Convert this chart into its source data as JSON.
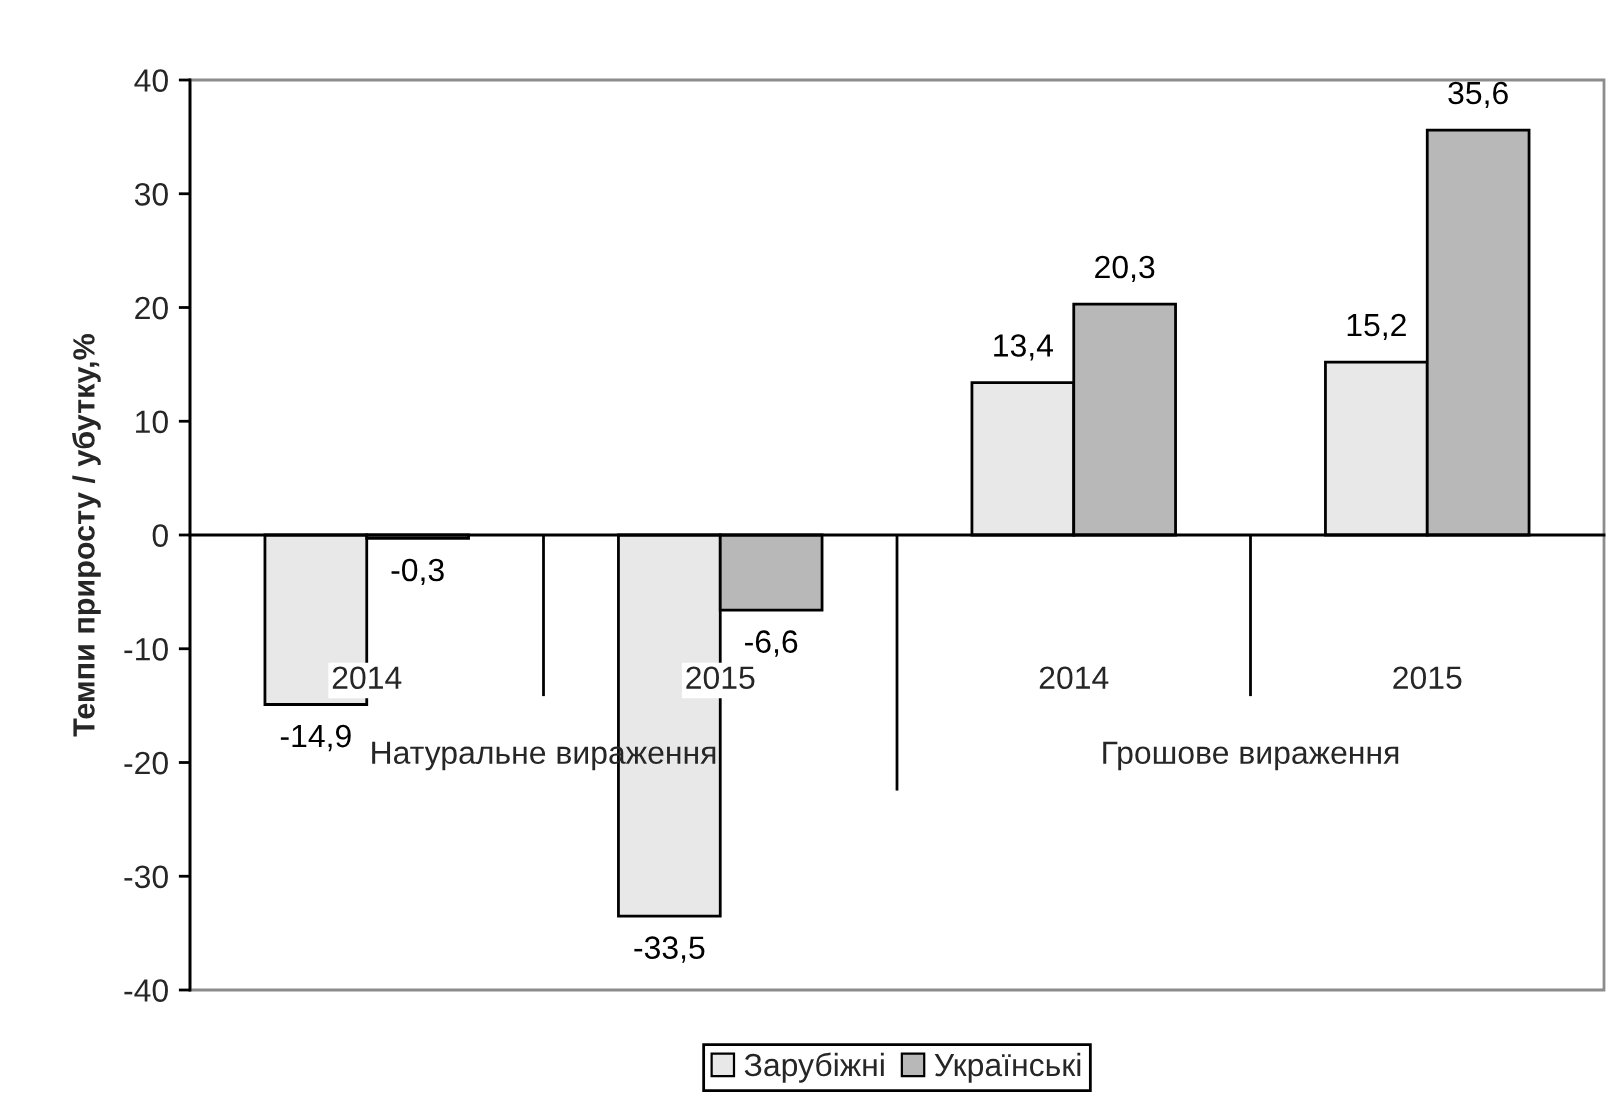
{
  "chart_data": {
    "type": "bar",
    "ylabel": "Темпи приросту / убутку,%",
    "categories": [
      "2014",
      "2015",
      "2014",
      "2015"
    ],
    "annotations": [
      "Натуральне вираження",
      "Грошове вираження"
    ],
    "series": [
      {
        "name": "Зарубіжні",
        "color": "#e8e8e8",
        "values": [
          -14.9,
          -33.5,
          13.4,
          15.2
        ],
        "value_labels": [
          "-14,9",
          "-33,5",
          "13,4",
          "15,2"
        ]
      },
      {
        "name": "Українські",
        "color": "#b8b8b8",
        "values": [
          -0.3,
          -6.6,
          20.3,
          35.6
        ],
        "value_labels": [
          "-0,3",
          "-6,6",
          "20,3",
          "35,6"
        ]
      }
    ],
    "ylim": [
      -40,
      40
    ],
    "yticks": [
      -40,
      -30,
      -20,
      -10,
      0,
      10,
      20,
      30,
      40
    ],
    "legend": "bottom"
  }
}
